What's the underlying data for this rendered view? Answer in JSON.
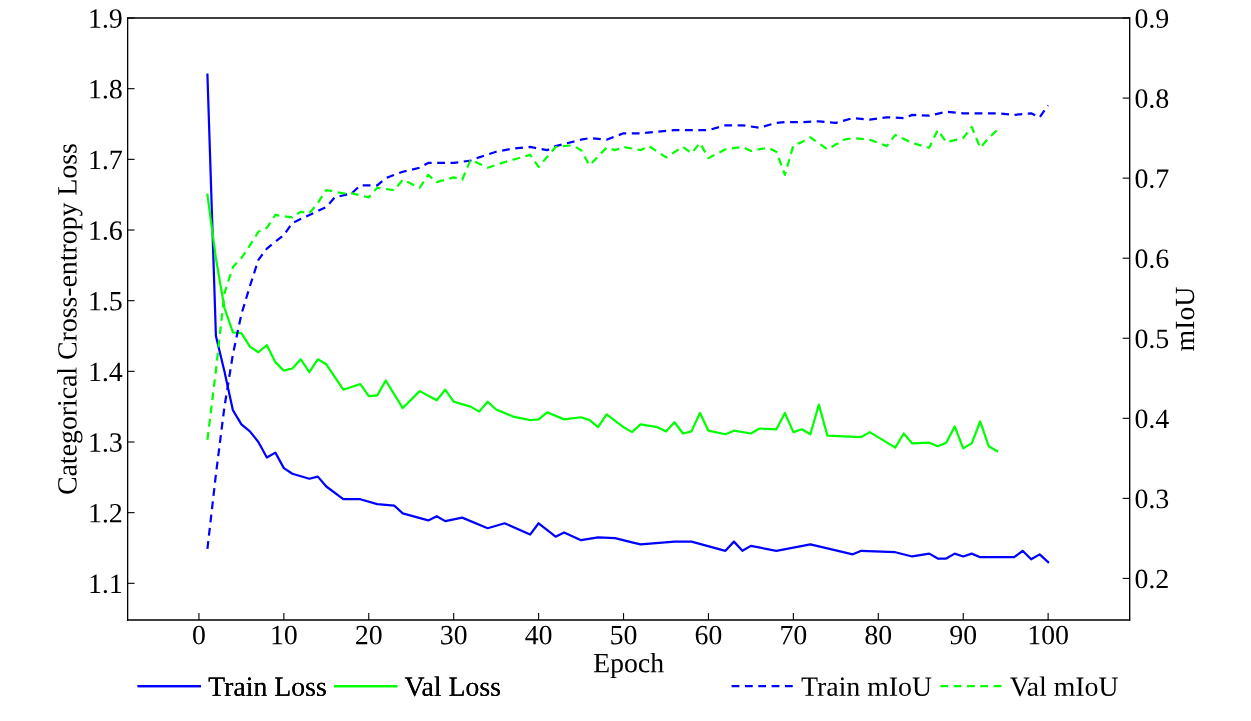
{
  "chart_data": {
    "type": "line",
    "xlabel": "Epoch",
    "ylabel": "Categorical Cross-entropy Loss",
    "y2label": "mIoU",
    "xlim": [
      -8.4,
      109.6
    ],
    "xticks": [
      0,
      10,
      20,
      30,
      40,
      50,
      60,
      70,
      80,
      90,
      100
    ],
    "ylim": [
      1.048,
      1.9
    ],
    "yticks": [
      1.1,
      1.2,
      1.3,
      1.4,
      1.5,
      1.6,
      1.7,
      1.8,
      1.9
    ],
    "y2lim": [
      0.148,
      0.9
    ],
    "y2ticks": [
      0.2,
      0.3,
      0.4,
      0.5,
      0.6,
      0.7,
      0.8,
      0.9
    ],
    "legend": "bottom",
    "grid": false,
    "marker": "none",
    "series": [
      {
        "name": "Train Loss",
        "color": "#0000ff",
        "line_style": "solid",
        "x": [
          1,
          2,
          3,
          4,
          5,
          6,
          7,
          8,
          9,
          10,
          11,
          13,
          14,
          15,
          17,
          19,
          21,
          23,
          24,
          27,
          28,
          29,
          31,
          34,
          36,
          39,
          40,
          42,
          43,
          45,
          47,
          49,
          51,
          52,
          56,
          58,
          62,
          63,
          64,
          65,
          68,
          72,
          77,
          78,
          82,
          84,
          86,
          87,
          88,
          89,
          90,
          91,
          92,
          96,
          97,
          98,
          99,
          100
        ],
        "values": [
          1.82,
          1.45,
          1.4,
          1.345,
          1.325,
          1.315,
          1.3,
          1.278,
          1.285,
          1.263,
          1.255,
          1.248,
          1.251,
          1.237,
          1.219,
          1.219,
          1.212,
          1.21,
          1.199,
          1.189,
          1.195,
          1.188,
          1.193,
          1.178,
          1.185,
          1.169,
          1.185,
          1.166,
          1.172,
          1.161,
          1.165,
          1.164,
          1.158,
          1.155,
          1.159,
          1.159,
          1.146,
          1.159,
          1.146,
          1.153,
          1.146,
          1.155,
          1.141,
          1.146,
          1.144,
          1.138,
          1.142,
          1.135,
          1.135,
          1.142,
          1.138,
          1.142,
          1.137,
          1.137,
          1.146,
          1.134,
          1.141,
          1.13
        ]
      },
      {
        "name": "Val Loss",
        "color": "#00ff00",
        "line_style": "solid",
        "x": [
          1,
          2,
          3,
          4,
          5,
          6,
          7,
          8,
          9,
          10,
          11,
          12,
          13,
          14,
          15,
          17,
          19,
          20,
          21,
          22,
          24,
          26,
          28,
          29,
          30,
          32,
          33,
          34,
          35,
          37,
          39,
          40,
          41,
          43,
          45,
          46,
          47,
          48,
          50,
          51,
          52,
          54,
          55,
          56,
          57,
          58,
          59,
          60,
          62,
          63,
          65,
          66,
          68,
          69,
          70,
          71,
          72,
          73,
          74,
          76,
          78,
          79,
          82,
          83,
          84,
          86,
          87,
          88,
          89,
          90,
          91,
          92,
          93,
          94
        ],
        "values": [
          1.65,
          1.56,
          1.49,
          1.455,
          1.454,
          1.435,
          1.427,
          1.437,
          1.413,
          1.401,
          1.404,
          1.417,
          1.399,
          1.417,
          1.41,
          1.374,
          1.382,
          1.365,
          1.366,
          1.387,
          1.348,
          1.372,
          1.359,
          1.374,
          1.357,
          1.35,
          1.343,
          1.357,
          1.346,
          1.336,
          1.331,
          1.332,
          1.342,
          1.332,
          1.335,
          1.331,
          1.321,
          1.339,
          1.321,
          1.314,
          1.325,
          1.321,
          1.315,
          1.328,
          1.312,
          1.315,
          1.341,
          1.316,
          1.311,
          1.316,
          1.312,
          1.319,
          1.318,
          1.341,
          1.314,
          1.318,
          1.311,
          1.353,
          1.309,
          1.308,
          1.307,
          1.314,
          1.292,
          1.312,
          1.298,
          1.299,
          1.294,
          1.299,
          1.322,
          1.291,
          1.298,
          1.329,
          1.294,
          1.287
        ]
      },
      {
        "name": "Train mIoU",
        "color": "#0000ff",
        "line_style": "dashed",
        "axis": "y2",
        "x": [
          1,
          2,
          3,
          4,
          5,
          6,
          7,
          8,
          10,
          11,
          13,
          15,
          16,
          18,
          19,
          21,
          22,
          24,
          26,
          27,
          30,
          32,
          33,
          35,
          37,
          39,
          41,
          42,
          45,
          46,
          48,
          50,
          52,
          54,
          56,
          58,
          60,
          62,
          64,
          66,
          68,
          69,
          71,
          73,
          75,
          77,
          79,
          81,
          83,
          84,
          86,
          88,
          90,
          92,
          94,
          96,
          98,
          99,
          100
        ],
        "values": [
          0.237,
          0.33,
          0.414,
          0.48,
          0.53,
          0.565,
          0.598,
          0.612,
          0.629,
          0.644,
          0.654,
          0.664,
          0.676,
          0.681,
          0.691,
          0.691,
          0.7,
          0.708,
          0.713,
          0.719,
          0.719,
          0.722,
          0.726,
          0.733,
          0.737,
          0.739,
          0.735,
          0.74,
          0.748,
          0.75,
          0.748,
          0.756,
          0.756,
          0.758,
          0.76,
          0.76,
          0.76,
          0.766,
          0.766,
          0.763,
          0.769,
          0.77,
          0.77,
          0.771,
          0.769,
          0.775,
          0.773,
          0.776,
          0.775,
          0.779,
          0.778,
          0.783,
          0.781,
          0.781,
          0.781,
          0.779,
          0.781,
          0.776,
          0.791
        ]
      },
      {
        "name": "Val mIoU",
        "color": "#00ff00",
        "line_style": "dashed",
        "axis": "y2",
        "x": [
          1,
          2,
          3,
          4,
          5,
          6,
          7,
          8,
          9,
          11,
          12,
          13,
          14,
          15,
          17,
          18,
          20,
          21,
          23,
          24,
          26,
          27,
          28,
          30,
          31,
          32,
          34,
          36,
          37,
          39,
          40,
          42,
          44,
          45,
          46,
          48,
          49,
          50,
          52,
          53,
          55,
          57,
          58,
          59,
          60,
          62,
          64,
          65,
          67,
          68,
          69,
          70,
          71,
          72,
          74,
          76,
          77,
          79,
          81,
          82,
          84,
          86,
          87,
          88,
          90,
          91,
          92,
          93,
          94
        ],
        "values": [
          0.373,
          0.46,
          0.556,
          0.589,
          0.6,
          0.616,
          0.633,
          0.638,
          0.654,
          0.651,
          0.658,
          0.656,
          0.669,
          0.685,
          0.681,
          0.681,
          0.676,
          0.688,
          0.685,
          0.698,
          0.688,
          0.704,
          0.695,
          0.701,
          0.698,
          0.723,
          0.713,
          0.72,
          0.723,
          0.729,
          0.714,
          0.739,
          0.741,
          0.735,
          0.716,
          0.738,
          0.735,
          0.739,
          0.735,
          0.74,
          0.726,
          0.739,
          0.731,
          0.744,
          0.725,
          0.736,
          0.739,
          0.734,
          0.738,
          0.733,
          0.704,
          0.741,
          0.745,
          0.751,
          0.736,
          0.748,
          0.75,
          0.748,
          0.74,
          0.754,
          0.744,
          0.738,
          0.76,
          0.745,
          0.75,
          0.764,
          0.738,
          0.75,
          0.76
        ]
      }
    ]
  }
}
